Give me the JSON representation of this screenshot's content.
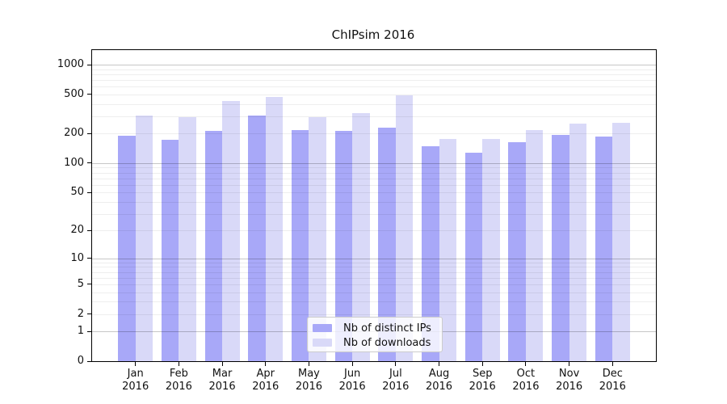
{
  "chart_data": {
    "type": "bar",
    "title": "ChIPsim 2016",
    "year_label": "2016",
    "categories": [
      "Jan",
      "Feb",
      "Mar",
      "Apr",
      "May",
      "Jun",
      "Jul",
      "Aug",
      "Sep",
      "Oct",
      "Nov",
      "Dec"
    ],
    "series": [
      {
        "name": "Nb of distinct IPs",
        "color": "#a8a8f8",
        "values": [
          190,
          172,
          214,
          304,
          215,
          213,
          229,
          148,
          127,
          163,
          192,
          187
        ]
      },
      {
        "name": "Nb of downloads",
        "color": "#d9d9f8",
        "values": [
          306,
          293,
          432,
          472,
          291,
          324,
          492,
          177,
          175,
          218,
          254,
          259
        ]
      }
    ],
    "yscale": "log1p",
    "yticks": [
      1000,
      500,
      200,
      100,
      50,
      20,
      10,
      5,
      2,
      1,
      0
    ],
    "ylim": [
      0,
      1400
    ],
    "grid": true,
    "legend_position": "lower-center"
  }
}
